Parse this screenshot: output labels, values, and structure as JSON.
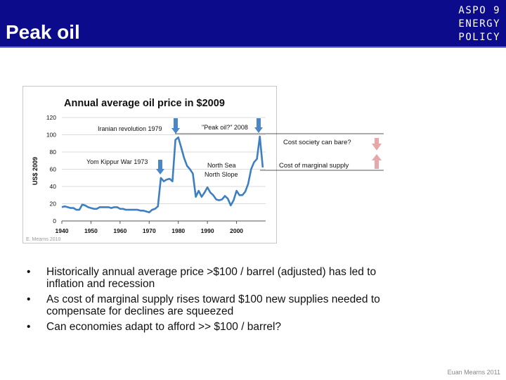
{
  "slide": {
    "title": "Peak oil",
    "brand_lines": [
      "ASPO 9",
      "ENERGY",
      "POLICY"
    ],
    "footer": "Euan Mearns 2011"
  },
  "bullets": [
    "Historically annual average price >$100 /  barrel (adjusted) has led to inflation and recession",
    "As cost of marginal supply rises toward $100 new supplies needed to compensate for declines are squeezed",
    "Can economies adapt to afford >> $100 / barrel?"
  ],
  "side_labels": {
    "upper": "Cost society can bare?",
    "lower": "Cost of marginal supply"
  },
  "colors": {
    "header": "#0b0b8c",
    "line": "#3e7fc1",
    "arrow_down": "#4a86c8",
    "pink_arrow": "#e8a8aa"
  },
  "chart_data": {
    "type": "line",
    "title": "Annual average oil price in $2009",
    "xlabel": "",
    "ylabel": "US$ 2009",
    "xlim": [
      1940,
      2010
    ],
    "ylim": [
      0,
      120
    ],
    "x_ticks": [
      1940,
      1950,
      1960,
      1970,
      1980,
      1990,
      2000
    ],
    "y_ticks": [
      0,
      20,
      40,
      60,
      80,
      100,
      120
    ],
    "grid": true,
    "source_note": "E. Mearns 2010",
    "annotations": [
      "Iranian revolution 1979",
      "\"Peak oil?\" 2008",
      "Yom Kippur War 1973",
      "North Sea",
      "North Slope"
    ],
    "series": [
      {
        "x": [
          1940,
          1941,
          1942,
          1943,
          1944,
          1945,
          1946,
          1947,
          1948,
          1949,
          1950,
          1951,
          1952,
          1953,
          1954,
          1955,
          1956,
          1957,
          1958,
          1959,
          1960,
          1961,
          1962,
          1963,
          1964,
          1965,
          1966,
          1967,
          1968,
          1969,
          1970,
          1971,
          1972,
          1973,
          1974,
          1975,
          1976,
          1977,
          1978,
          1979,
          1980,
          1981,
          1982,
          1983,
          1984,
          1985,
          1986,
          1987,
          1988,
          1989,
          1990,
          1991,
          1992,
          1993,
          1994,
          1995,
          1996,
          1997,
          1998,
          1999,
          2000,
          2001,
          2002,
          2003,
          2004,
          2005,
          2006,
          2007,
          2008,
          2009
        ],
        "values": [
          16,
          17,
          16,
          15,
          15,
          13,
          13,
          19,
          18,
          16,
          15,
          14,
          14,
          16,
          16,
          16,
          16,
          15,
          16,
          16,
          14,
          14,
          13,
          13,
          13,
          13,
          13,
          12,
          12,
          11,
          10,
          13,
          14,
          17,
          50,
          46,
          48,
          49,
          46,
          94,
          97,
          85,
          73,
          64,
          60,
          55,
          28,
          35,
          28,
          33,
          39,
          33,
          30,
          25,
          24,
          25,
          29,
          26,
          18,
          24,
          35,
          30,
          30,
          34,
          43,
          60,
          68,
          72,
          98,
          62
        ]
      }
    ]
  }
}
